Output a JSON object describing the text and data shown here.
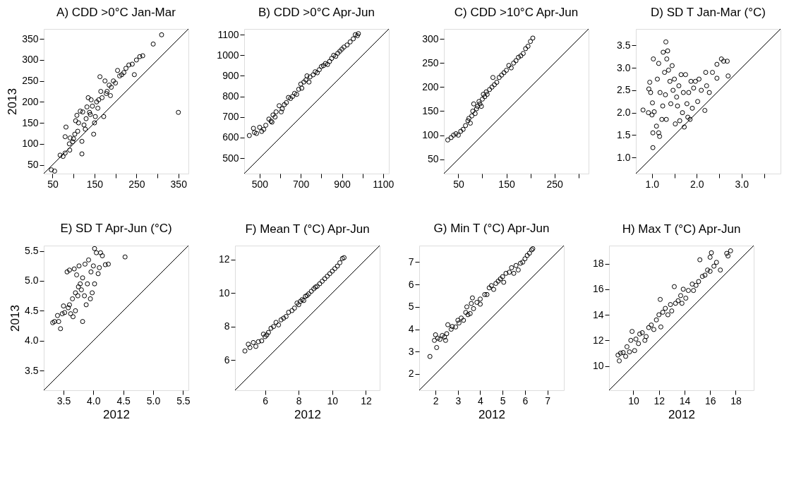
{
  "chart_data": [
    {
      "type": "scatter",
      "title": "A) CDD >0°C Jan-Mar",
      "ylabel": "2013",
      "xlim": [
        29,
        374
      ],
      "ylim": [
        29,
        374
      ],
      "xticks": [
        50,
        {
          "value": 100,
          "label": null
        },
        150,
        {
          "value": 200,
          "label": null
        },
        250,
        {
          "value": 300,
          "label": null
        },
        350
      ],
      "yticks": [
        50,
        100,
        150,
        200,
        250,
        300,
        350
      ],
      "grid": false,
      "series": [
        {
          "marker": "circle",
          "color": "#000000",
          "x": [
            47,
            55,
            68,
            75,
            80,
            80,
            82,
            90,
            91,
            92,
            98,
            100,
            103,
            105,
            108,
            110,
            112,
            116,
            120,
            120,
            122,
            125,
            128,
            130,
            132,
            135,
            138,
            140,
            142,
            145,
            148,
            150,
            152,
            155,
            158,
            160,
            163,
            165,
            168,
            172,
            175,
            178,
            180,
            185,
            188,
            190,
            195,
            200,
            205,
            210,
            215,
            220,
            225,
            232,
            240,
            245,
            250,
            258,
            265,
            290,
            310,
            350
          ],
          "values": [
            38,
            35,
            73,
            70,
            78,
            117,
            140,
            100,
            85,
            114,
            105,
            112,
            123,
            155,
            168,
            130,
            150,
            178,
            106,
            76,
            176,
            145,
            135,
            160,
            188,
            210,
            175,
            170,
            205,
            190,
            123,
            150,
            165,
            200,
            185,
            205,
            260,
            225,
            210,
            165,
            250,
            220,
            225,
            240,
            215,
            235,
            250,
            245,
            275,
            262,
            265,
            270,
            280,
            288,
            290,
            265,
            300,
            308,
            310,
            338,
            360,
            175
          ]
        },
        {
          "type": "line",
          "color": "#000000",
          "line_style": "solid",
          "x": [
            29,
            374
          ],
          "values": [
            29,
            374
          ]
        }
      ]
    },
    {
      "type": "scatter",
      "title": "B) CDD >0°C Apr-Jun",
      "xlim": [
        425,
        1128
      ],
      "ylim": [
        425,
        1128
      ],
      "xticks": [
        500,
        {
          "value": 600,
          "label": null
        },
        700,
        {
          "value": 800,
          "label": null
        },
        900,
        {
          "value": 1000,
          "label": null
        },
        1100
      ],
      "yticks": [
        500,
        600,
        700,
        800,
        900,
        1000,
        1100
      ],
      "grid": false,
      "series": [
        {
          "marker": "circle",
          "color": "#000000",
          "x": [
            450,
            470,
            475,
            485,
            500,
            510,
            520,
            530,
            545,
            555,
            560,
            565,
            575,
            580,
            595,
            605,
            610,
            620,
            630,
            640,
            650,
            660,
            670,
            680,
            690,
            700,
            705,
            715,
            725,
            730,
            740,
            745,
            760,
            770,
            780,
            790,
            800,
            810,
            820,
            830,
            840,
            850,
            860,
            870,
            880,
            890,
            900,
            910,
            925,
            940,
            955,
            965,
            975,
            980
          ],
          "values": [
            610,
            645,
            625,
            620,
            650,
            630,
            640,
            660,
            690,
            680,
            675,
            710,
            700,
            725,
            755,
            725,
            740,
            760,
            770,
            795,
            790,
            800,
            815,
            810,
            835,
            860,
            840,
            870,
            880,
            900,
            870,
            895,
            905,
            920,
            915,
            930,
            945,
            950,
            960,
            955,
            970,
            985,
            1000,
            995,
            1010,
            1020,
            1030,
            1040,
            1050,
            1065,
            1080,
            1100,
            1095,
            1105
          ]
        },
        {
          "type": "line",
          "color": "#000000",
          "line_style": "solid",
          "x": [
            425,
            1128
          ],
          "values": [
            425,
            1128
          ]
        }
      ]
    },
    {
      "type": "scatter",
      "title": "C) CDD >10°C Apr-Jun",
      "xlim": [
        20,
        321
      ],
      "ylim": [
        20,
        321
      ],
      "xticks": [
        50,
        {
          "value": 100,
          "label": null
        },
        150,
        {
          "value": 200,
          "label": null
        },
        250,
        {
          "value": 300,
          "label": null
        }
      ],
      "yticks": [
        50,
        100,
        150,
        200,
        250,
        300
      ],
      "grid": false,
      "series": [
        {
          "marker": "circle",
          "color": "#000000",
          "x": [
            28,
            35,
            40,
            45,
            50,
            55,
            60,
            65,
            70,
            72,
            75,
            78,
            80,
            82,
            85,
            88,
            90,
            93,
            95,
            98,
            100,
            102,
            105,
            108,
            110,
            115,
            120,
            122,
            125,
            130,
            135,
            140,
            145,
            150,
            155,
            160,
            165,
            170,
            175,
            180,
            185,
            190,
            195,
            200,
            205
          ],
          "values": [
            90,
            95,
            100,
            103,
            100,
            108,
            112,
            120,
            130,
            135,
            125,
            140,
            150,
            165,
            145,
            155,
            160,
            170,
            165,
            160,
            175,
            185,
            180,
            190,
            185,
            195,
            200,
            220,
            205,
            210,
            220,
            225,
            230,
            235,
            245,
            240,
            250,
            255,
            262,
            265,
            270,
            280,
            285,
            295,
            302
          ]
        },
        {
          "type": "line",
          "color": "#000000",
          "line_style": "solid",
          "x": [
            20,
            321
          ],
          "values": [
            20,
            321
          ]
        }
      ]
    },
    {
      "type": "scatter",
      "title": "D) SD T Jan-Mar (°C)",
      "xlim": [
        0.64,
        3.87
      ],
      "ylim": [
        0.64,
        3.87
      ],
      "xticks": [
        {
          "value": 1,
          "label": "1.0"
        },
        {
          "value": 1.5,
          "label": null
        },
        {
          "value": 2,
          "label": "2.0"
        },
        {
          "value": 2.5,
          "label": null
        },
        {
          "value": 3,
          "label": "3.0"
        },
        {
          "value": 3.5,
          "label": null
        }
      ],
      "yticks": [
        {
          "value": 1,
          "label": "1.0"
        },
        1.5,
        {
          "value": 2,
          "label": "2.0"
        },
        2.5,
        {
          "value": 3,
          "label": "3.0"
        },
        3.5
      ],
      "grid": false,
      "series": [
        {
          "marker": "circle",
          "color": "#000000",
          "x": [
            0.8,
            0.92,
            0.93,
            0.95,
            0.97,
            1.0,
            1.01,
            1.02,
            1.02,
            1.03,
            1.05,
            1.1,
            1.12,
            1.15,
            1.17,
            1.15,
            1.18,
            1.22,
            1.24,
            1.25,
            1.28,
            1.3,
            1.31,
            1.32,
            1.33,
            1.35,
            1.37,
            1.4,
            1.42,
            1.45,
            1.47,
            1.5,
            1.52,
            1.55,
            1.57,
            1.6,
            1.62,
            1.65,
            1.68,
            1.7,
            1.72,
            1.75,
            1.78,
            1.8,
            1.82,
            1.85,
            1.87,
            1.9,
            1.93,
            1.97,
            2.02,
            2.05,
            2.1,
            2.18,
            2.2,
            2.22,
            2.28,
            2.35,
            2.45,
            2.45,
            2.55,
            2.6,
            2.68,
            2.7
          ],
          "values": [
            2.06,
            2.0,
            2.53,
            2.68,
            2.45,
            1.95,
            2.22,
            1.55,
            1.22,
            3.2,
            2.02,
            1.7,
            2.75,
            1.55,
            1.47,
            3.1,
            2.45,
            1.85,
            2.15,
            3.35,
            2.9,
            2.4,
            3.58,
            1.85,
            3.2,
            3.38,
            2.95,
            2.7,
            2.2,
            3.05,
            2.5,
            2.75,
            1.75,
            2.35,
            2.15,
            2.6,
            1.82,
            2.85,
            2.0,
            2.45,
            1.68,
            2.85,
            2.2,
            1.9,
            2.45,
            1.85,
            2.7,
            2.1,
            2.55,
            2.7,
            2.25,
            2.75,
            2.5,
            2.05,
            2.9,
            2.6,
            2.45,
            2.9,
            2.77,
            3.08,
            3.2,
            3.15,
            3.15,
            2.82
          ]
        },
        {
          "type": "line",
          "color": "#000000",
          "line_style": "solid",
          "x": [
            0.64,
            3.87
          ],
          "values": [
            0.64,
            3.87
          ]
        }
      ]
    },
    {
      "type": "scatter",
      "title": "E) SD T Apr-Jun (°C)",
      "xlabel": "2012",
      "ylabel": "2013",
      "xlim": [
        3.17,
        5.59
      ],
      "ylim": [
        3.17,
        5.59
      ],
      "xticks": [
        3.5,
        {
          "value": 4,
          "label": "4.0"
        },
        4.5,
        {
          "value": 5,
          "label": "5.0"
        },
        5.5
      ],
      "yticks": [
        3.5,
        {
          "value": 4,
          "label": "4.0"
        },
        4.5,
        {
          "value": 5,
          "label": "5.0"
        },
        5.5
      ],
      "grid": false,
      "series": [
        {
          "marker": "circle",
          "color": "#000000",
          "x": [
            3.32,
            3.35,
            3.4,
            3.42,
            3.45,
            3.48,
            3.5,
            3.52,
            3.56,
            3.58,
            3.6,
            3.62,
            3.6,
            3.65,
            3.66,
            3.68,
            3.7,
            3.7,
            3.72,
            3.74,
            3.75,
            3.76,
            3.78,
            3.8,
            3.82,
            3.82,
            3.85,
            3.86,
            3.88,
            3.9,
            3.92,
            3.95,
            3.96,
            3.98,
            4.0,
            4.02,
            4.05,
            4.08,
            4.1,
            4.12,
            4.15,
            4.2,
            4.25,
            4.02,
            4.53
          ],
          "values": [
            4.3,
            4.32,
            4.42,
            4.32,
            4.2,
            4.45,
            4.58,
            4.47,
            5.15,
            4.55,
            4.6,
            4.45,
            5.18,
            4.7,
            4.4,
            5.2,
            4.5,
            4.8,
            5.1,
            4.75,
            4.9,
            5.25,
            4.95,
            4.85,
            4.32,
            5.05,
            4.75,
            5.28,
            4.6,
            4.95,
            5.35,
            4.7,
            5.15,
            4.8,
            5.25,
            4.95,
            5.47,
            5.12,
            5.22,
            5.47,
            5.42,
            5.27,
            5.28,
            5.54,
            5.4
          ]
        },
        {
          "type": "line",
          "color": "#000000",
          "line_style": "solid",
          "x": [
            3.17,
            5.59
          ],
          "values": [
            3.17,
            5.59
          ]
        }
      ]
    },
    {
      "type": "scatter",
      "title": "F) Mean T (°C) Apr-Jun",
      "xlabel": "2012",
      "xlim": [
        4.21,
        12.82
      ],
      "ylim": [
        4.21,
        12.82
      ],
      "xticks": [
        6,
        8,
        10,
        12
      ],
      "yticks": [
        6,
        8,
        10,
        12
      ],
      "grid": false,
      "series": [
        {
          "marker": "circle",
          "color": "#000000",
          "x": [
            4.8,
            5.0,
            5.1,
            5.3,
            5.45,
            5.6,
            5.8,
            5.9,
            6.0,
            6.1,
            6.2,
            6.35,
            6.5,
            6.65,
            6.8,
            6.95,
            7.1,
            7.25,
            7.4,
            7.6,
            7.75,
            7.9,
            8.0,
            8.1,
            8.2,
            8.3,
            8.4,
            8.5,
            8.6,
            8.75,
            8.9,
            9.0,
            9.1,
            9.25,
            9.4,
            9.55,
            9.7,
            9.85,
            10.0,
            10.15,
            10.3,
            10.45,
            10.6,
            10.7
          ],
          "values": [
            6.55,
            6.95,
            6.75,
            7.05,
            6.82,
            7.1,
            7.15,
            7.55,
            7.4,
            7.5,
            7.65,
            7.9,
            8.0,
            8.25,
            8.1,
            8.4,
            8.5,
            8.6,
            8.85,
            8.95,
            9.1,
            9.4,
            9.3,
            9.5,
            9.6,
            9.55,
            9.8,
            9.85,
            9.95,
            10.1,
            10.25,
            10.35,
            10.4,
            10.55,
            10.7,
            10.85,
            11.0,
            11.15,
            11.3,
            11.45,
            11.6,
            11.8,
            12.05,
            12.1
          ]
        },
        {
          "type": "line",
          "color": "#000000",
          "line_style": "solid",
          "x": [
            4.21,
            12.82
          ],
          "values": [
            4.21,
            12.82
          ]
        }
      ]
    },
    {
      "type": "scatter",
      "title": "G) Min T (°C) Apr-Jun",
      "xlabel": "2012",
      "xlim": [
        1.27,
        7.74
      ],
      "ylim": [
        1.27,
        7.74
      ],
      "xticks": [
        2,
        3,
        4,
        5,
        6,
        7
      ],
      "yticks": [
        2,
        3,
        4,
        5,
        6,
        7
      ],
      "grid": false,
      "series": [
        {
          "marker": "circle",
          "color": "#000000",
          "x": [
            1.75,
            1.95,
            2.0,
            2.05,
            2.1,
            2.2,
            2.3,
            2.4,
            2.45,
            2.5,
            2.55,
            2.7,
            2.75,
            2.9,
            3.0,
            3.05,
            3.15,
            3.25,
            3.35,
            3.4,
            3.45,
            3.55,
            3.6,
            3.65,
            3.7,
            3.85,
            4.0,
            4.0,
            4.2,
            4.3,
            4.4,
            4.5,
            4.6,
            4.7,
            4.8,
            4.9,
            5.0,
            5.05,
            5.15,
            5.3,
            5.4,
            5.5,
            5.6,
            5.7,
            5.8,
            5.9,
            6.0,
            6.1,
            6.2,
            6.3,
            6.35
          ],
          "values": [
            2.78,
            3.5,
            3.75,
            3.18,
            3.6,
            3.55,
            3.72,
            3.65,
            3.5,
            3.8,
            4.2,
            4.0,
            4.12,
            4.1,
            4.4,
            4.28,
            4.5,
            4.4,
            4.75,
            5.0,
            4.65,
            4.7,
            5.15,
            5.4,
            4.92,
            5.2,
            5.35,
            5.12,
            5.55,
            5.55,
            5.85,
            5.95,
            5.78,
            6.05,
            6.15,
            6.25,
            6.35,
            6.1,
            6.5,
            6.55,
            6.75,
            6.5,
            6.85,
            6.65,
            6.95,
            7.0,
            7.15,
            7.3,
            7.4,
            7.55,
            7.6
          ]
        },
        {
          "type": "line",
          "color": "#000000",
          "line_style": "solid",
          "x": [
            1.27,
            7.74
          ],
          "values": [
            1.27,
            7.74
          ]
        }
      ]
    },
    {
      "type": "scatter",
      "title": "H) Max T (°C) Apr-Jun",
      "xlabel": "2012",
      "xlim": [
        8.1,
        19.41
      ],
      "ylim": [
        8.1,
        19.41
      ],
      "xticks": [
        10,
        12,
        14,
        16,
        18
      ],
      "yticks": [
        10,
        12,
        14,
        16,
        18
      ],
      "grid": false,
      "series": [
        {
          "marker": "circle",
          "color": "#000000",
          "x": [
            8.8,
            8.9,
            9.0,
            9.2,
            9.4,
            9.5,
            9.7,
            9.8,
            9.9,
            10.1,
            10.2,
            10.4,
            10.5,
            10.7,
            10.9,
            11.0,
            11.2,
            11.4,
            11.6,
            11.8,
            12.0,
            12.1,
            12.15,
            12.3,
            12.5,
            12.7,
            12.9,
            13.0,
            13.2,
            13.3,
            13.5,
            13.7,
            13.8,
            13.9,
            14.1,
            14.3,
            14.6,
            14.7,
            14.9,
            15.1,
            15.2,
            15.4,
            15.6,
            15.8,
            16.0,
            16.1,
            16.0,
            16.3,
            16.5,
            16.8,
            17.3,
            17.4,
            17.6
          ],
          "values": [
            10.85,
            10.4,
            11.0,
            11.05,
            10.75,
            11.5,
            11.1,
            12.0,
            12.7,
            11.2,
            12.1,
            11.75,
            12.5,
            12.6,
            12.0,
            12.3,
            13.0,
            13.2,
            12.85,
            13.6,
            14.0,
            15.2,
            13.05,
            14.2,
            14.5,
            14.0,
            14.8,
            14.3,
            16.2,
            14.9,
            15.1,
            15.5,
            14.9,
            16.0,
            15.3,
            15.9,
            16.4,
            15.9,
            16.3,
            16.6,
            18.3,
            17.0,
            17.1,
            17.5,
            18.5,
            18.85,
            17.4,
            17.8,
            18.1,
            17.5,
            18.8,
            18.6,
            19.0
          ]
        },
        {
          "type": "line",
          "color": "#000000",
          "line_style": "solid",
          "x": [
            8.1,
            19.41
          ],
          "values": [
            8.1,
            19.41
          ]
        }
      ]
    }
  ]
}
